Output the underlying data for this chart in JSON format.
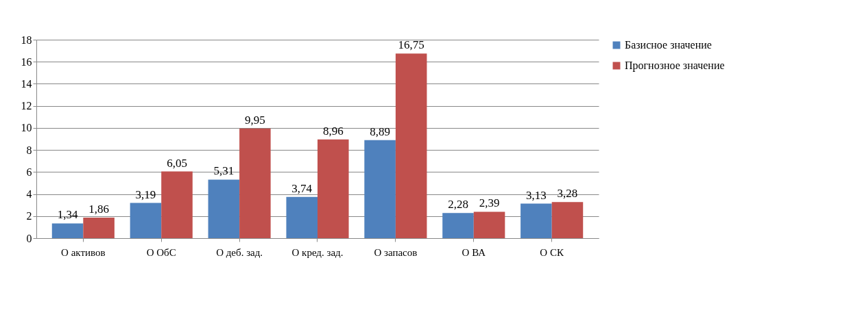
{
  "chart_data": {
    "type": "bar",
    "categories": [
      "О активов",
      "О ОбС",
      "О деб. зад.",
      "О кред. зад.",
      "О запасов",
      "О ВА",
      "О СК"
    ],
    "series": [
      {
        "name": "Базисное значение",
        "color": "#4f81bd",
        "values": [
          1.34,
          3.19,
          5.31,
          3.74,
          8.89,
          2.28,
          3.13
        ],
        "value_labels": [
          "1,34",
          "3,19",
          "5,31",
          "3,74",
          "8,89",
          "2,28",
          "3,13"
        ]
      },
      {
        "name": "Прогнозное значение",
        "color": "#c0504d",
        "values": [
          1.86,
          6.05,
          9.95,
          8.96,
          16.75,
          2.39,
          3.28
        ],
        "value_labels": [
          "1,86",
          "6,05",
          "9,95",
          "8,96",
          "16,75",
          "2,39",
          "3,28"
        ]
      }
    ],
    "ylim": [
      0,
      18
    ],
    "yticks": [
      0,
      2,
      4,
      6,
      8,
      10,
      12,
      14,
      16,
      18
    ],
    "grid": "y",
    "legend": "right"
  }
}
